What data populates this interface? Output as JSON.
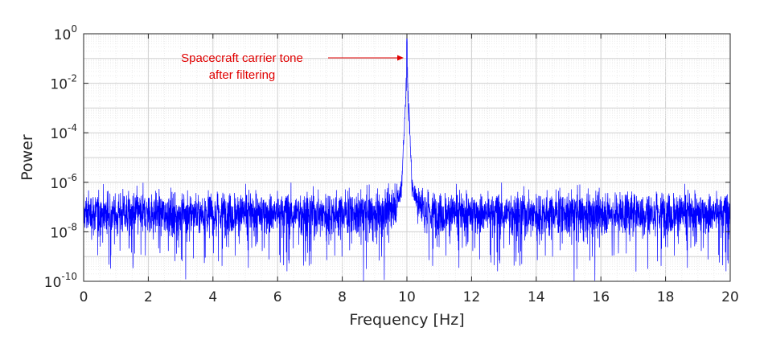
{
  "chart_data": {
    "type": "line",
    "title": "",
    "xlabel": "Frequency [Hz]",
    "ylabel": "Power",
    "xlim": [
      0,
      20
    ],
    "ylim": [
      1e-10,
      1
    ],
    "y_scale": "log",
    "grid": true,
    "x_ticks": [
      0,
      2,
      4,
      6,
      8,
      10,
      12,
      14,
      16,
      18,
      20
    ],
    "y_ticks": [
      {
        "base": "10",
        "exp": "0"
      },
      {
        "base": "10",
        "exp": "-2"
      },
      {
        "base": "10",
        "exp": "-4"
      },
      {
        "base": "10",
        "exp": "-6"
      },
      {
        "base": "10",
        "exp": "-8"
      },
      {
        "base": "10",
        "exp": "-10"
      }
    ],
    "series": [
      {
        "color": "#0000ff",
        "noise_floor_median": 3e-08,
        "noise_floor_min": 1e-10,
        "noise_floor_max": 5e-07,
        "peak": {
          "x": 10,
          "y": 1
        }
      }
    ],
    "annotation": {
      "lines": [
        "Spacecraft carrier tone",
        "after filtering"
      ],
      "color": "#e00000",
      "points_to": {
        "x": 10,
        "y": 0.1
      }
    }
  }
}
